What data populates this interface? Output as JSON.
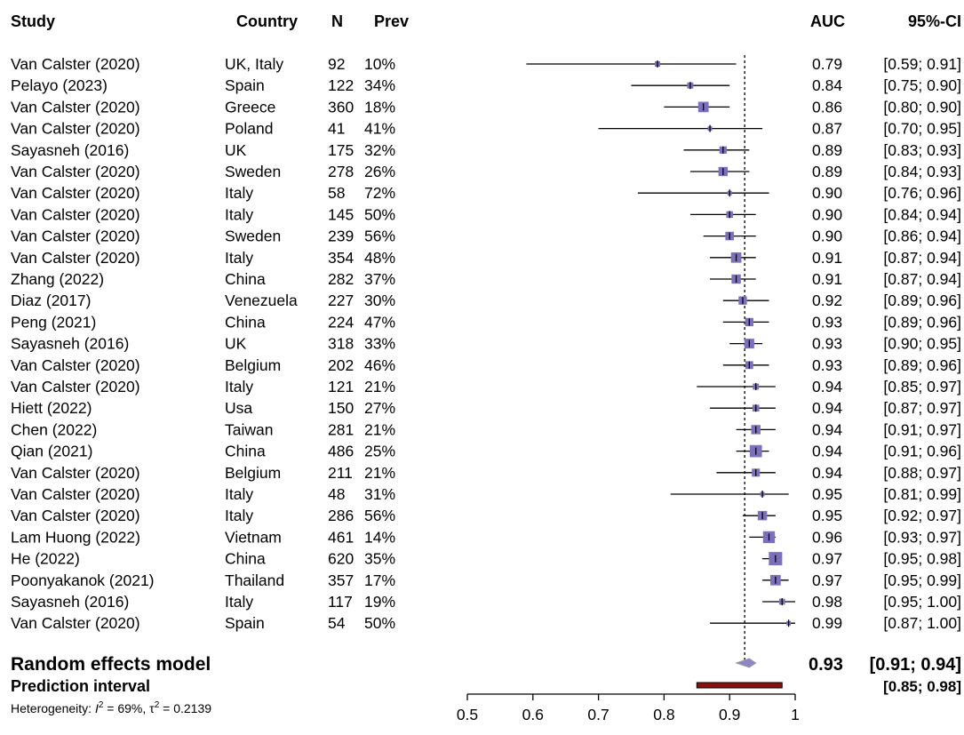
{
  "chart_data": {
    "type": "forest",
    "columns": {
      "study": "Study",
      "country": "Country",
      "n": "N",
      "prev": "Prev",
      "auc": "AUC",
      "ci": "95%-CI"
    },
    "rows": [
      {
        "study": "Van Calster (2020)",
        "country": "UK, Italy",
        "n": "92",
        "prev": "10%",
        "auc": 0.79,
        "lower": 0.59,
        "upper": 0.91,
        "auc_text": "0.79",
        "ci_text": "[0.59; 0.91]"
      },
      {
        "study": "Pelayo (2023)",
        "country": "Spain",
        "n": "122",
        "prev": "34%",
        "auc": 0.84,
        "lower": 0.75,
        "upper": 0.9,
        "auc_text": "0.84",
        "ci_text": "[0.75; 0.90]"
      },
      {
        "study": "Van Calster (2020)",
        "country": "Greece",
        "n": "360",
        "prev": "18%",
        "auc": 0.86,
        "lower": 0.8,
        "upper": 0.9,
        "auc_text": "0.86",
        "ci_text": "[0.80; 0.90]"
      },
      {
        "study": "Van Calster (2020)",
        "country": "Poland",
        "n": "41",
        "prev": "41%",
        "auc": 0.87,
        "lower": 0.7,
        "upper": 0.95,
        "auc_text": "0.87",
        "ci_text": "[0.70; 0.95]"
      },
      {
        "study": "Sayasneh (2016)",
        "country": "UK",
        "n": "175",
        "prev": "32%",
        "auc": 0.89,
        "lower": 0.83,
        "upper": 0.93,
        "auc_text": "0.89",
        "ci_text": "[0.83; 0.93]"
      },
      {
        "study": "Van Calster (2020)",
        "country": "Sweden",
        "n": "278",
        "prev": "26%",
        "auc": 0.89,
        "lower": 0.84,
        "upper": 0.93,
        "auc_text": "0.89",
        "ci_text": "[0.84; 0.93]"
      },
      {
        "study": "Van Calster (2020)",
        "country": "Italy",
        "n": "58",
        "prev": "72%",
        "auc": 0.9,
        "lower": 0.76,
        "upper": 0.96,
        "auc_text": "0.90",
        "ci_text": "[0.76; 0.96]"
      },
      {
        "study": "Van Calster (2020)",
        "country": "Italy",
        "n": "145",
        "prev": "50%",
        "auc": 0.9,
        "lower": 0.84,
        "upper": 0.94,
        "auc_text": "0.90",
        "ci_text": "[0.84; 0.94]"
      },
      {
        "study": "Van Calster (2020)",
        "country": "Sweden",
        "n": "239",
        "prev": "56%",
        "auc": 0.9,
        "lower": 0.86,
        "upper": 0.94,
        "auc_text": "0.90",
        "ci_text": "[0.86; 0.94]"
      },
      {
        "study": "Van Calster (2020)",
        "country": "Italy",
        "n": "354",
        "prev": "48%",
        "auc": 0.91,
        "lower": 0.87,
        "upper": 0.94,
        "auc_text": "0.91",
        "ci_text": "[0.87; 0.94]"
      },
      {
        "study": "Zhang (2022)",
        "country": "China",
        "n": "282",
        "prev": "37%",
        "auc": 0.91,
        "lower": 0.87,
        "upper": 0.94,
        "auc_text": "0.91",
        "ci_text": "[0.87; 0.94]"
      },
      {
        "study": "Diaz (2017)",
        "country": "Venezuela",
        "n": "227",
        "prev": "30%",
        "auc": 0.92,
        "lower": 0.89,
        "upper": 0.96,
        "auc_text": "0.92",
        "ci_text": "[0.89; 0.96]"
      },
      {
        "study": "Peng (2021)",
        "country": "China",
        "n": "224",
        "prev": "47%",
        "auc": 0.93,
        "lower": 0.89,
        "upper": 0.96,
        "auc_text": "0.93",
        "ci_text": "[0.89; 0.96]"
      },
      {
        "study": "Sayasneh (2016)",
        "country": "UK",
        "n": "318",
        "prev": "33%",
        "auc": 0.93,
        "lower": 0.9,
        "upper": 0.95,
        "auc_text": "0.93",
        "ci_text": "[0.90; 0.95]"
      },
      {
        "study": "Van Calster (2020)",
        "country": "Belgium",
        "n": "202",
        "prev": "46%",
        "auc": 0.93,
        "lower": 0.89,
        "upper": 0.96,
        "auc_text": "0.93",
        "ci_text": "[0.89; 0.96]"
      },
      {
        "study": "Van Calster (2020)",
        "country": "Italy",
        "n": "121",
        "prev": "21%",
        "auc": 0.94,
        "lower": 0.85,
        "upper": 0.97,
        "auc_text": "0.94",
        "ci_text": "[0.85; 0.97]"
      },
      {
        "study": "Hiett (2022)",
        "country": "Usa",
        "n": "150",
        "prev": "27%",
        "auc": 0.94,
        "lower": 0.87,
        "upper": 0.97,
        "auc_text": "0.94",
        "ci_text": "[0.87; 0.97]"
      },
      {
        "study": "Chen (2022)",
        "country": "Taiwan",
        "n": "281",
        "prev": "21%",
        "auc": 0.94,
        "lower": 0.91,
        "upper": 0.97,
        "auc_text": "0.94",
        "ci_text": "[0.91; 0.97]"
      },
      {
        "study": "Qian (2021)",
        "country": "China",
        "n": "486",
        "prev": "25%",
        "auc": 0.94,
        "lower": 0.91,
        "upper": 0.96,
        "auc_text": "0.94",
        "ci_text": "[0.91; 0.96]"
      },
      {
        "study": "Van Calster (2020)",
        "country": "Belgium",
        "n": "211",
        "prev": "21%",
        "auc": 0.94,
        "lower": 0.88,
        "upper": 0.97,
        "auc_text": "0.94",
        "ci_text": "[0.88; 0.97]"
      },
      {
        "study": "Van Calster (2020)",
        "country": "Italy",
        "n": "48",
        "prev": "31%",
        "auc": 0.95,
        "lower": 0.81,
        "upper": 0.99,
        "auc_text": "0.95",
        "ci_text": "[0.81; 0.99]"
      },
      {
        "study": "Van Calster (2020)",
        "country": "Italy",
        "n": "286",
        "prev": "56%",
        "auc": 0.95,
        "lower": 0.92,
        "upper": 0.97,
        "auc_text": "0.95",
        "ci_text": "[0.92; 0.97]"
      },
      {
        "study": "Lam Huong (2022)",
        "country": "Vietnam",
        "n": "461",
        "prev": "14%",
        "auc": 0.96,
        "lower": 0.93,
        "upper": 0.97,
        "auc_text": "0.96",
        "ci_text": "[0.93; 0.97]"
      },
      {
        "study": "He (2022)",
        "country": "China",
        "n": "620",
        "prev": "35%",
        "auc": 0.97,
        "lower": 0.95,
        "upper": 0.98,
        "auc_text": "0.97",
        "ci_text": "[0.95; 0.98]"
      },
      {
        "study": "Poonyakanok (2021)",
        "country": "Thailand",
        "n": "357",
        "prev": "17%",
        "auc": 0.97,
        "lower": 0.95,
        "upper": 0.99,
        "auc_text": "0.97",
        "ci_text": "[0.95; 0.99]"
      },
      {
        "study": "Sayasneh (2016)",
        "country": "Italy",
        "n": "117",
        "prev": "19%",
        "auc": 0.98,
        "lower": 0.95,
        "upper": 1.0,
        "auc_text": "0.98",
        "ci_text": "[0.95; 1.00]"
      },
      {
        "study": "Van Calster (2020)",
        "country": "Spain",
        "n": "54",
        "prev": "50%",
        "auc": 0.99,
        "lower": 0.87,
        "upper": 1.0,
        "auc_text": "0.99",
        "ci_text": "[0.87; 1.00]"
      }
    ],
    "summary": {
      "label": "Random effects model",
      "auc": 0.93,
      "lower": 0.91,
      "upper": 0.94,
      "auc_text": "0.93",
      "ci_text": "[0.91; 0.94]"
    },
    "prediction_interval": {
      "label": "Prediction interval",
      "lower": 0.85,
      "upper": 0.98,
      "ci_text": "[0.85; 0.98]"
    },
    "heterogeneity": {
      "prefix": "Heterogeneity: ",
      "i2_symbol": "I",
      "i2_sup": "2",
      "i2_value": " = 69%, ",
      "tau_symbol": "τ",
      "tau_sup": "2",
      "tau_value": " = 0.2139"
    },
    "x_axis": {
      "ticks": [
        0.5,
        0.6,
        0.7,
        0.8,
        0.9,
        1
      ],
      "tick_labels": [
        "0.5",
        "0.6",
        "0.7",
        "0.8",
        "0.9",
        "1"
      ],
      "range": [
        0.5,
        1.0
      ]
    },
    "reference_line": 0.923,
    "colors": {
      "square": "#7b6fbe",
      "diamond": "#8d85c7",
      "prediction_bar": "#8a1010",
      "text": "#000000"
    }
  }
}
